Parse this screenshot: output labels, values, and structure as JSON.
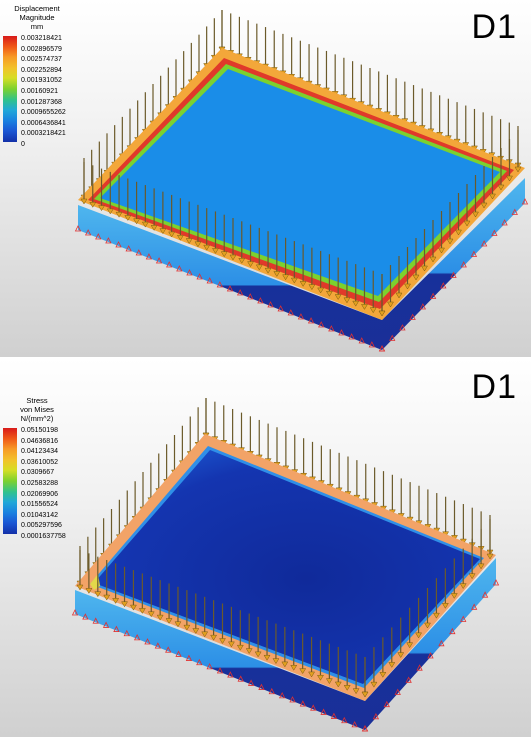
{
  "top": {
    "label": "D1",
    "legend": {
      "title_lines": [
        "Displacement",
        "Magnitude",
        "mm"
      ],
      "values": [
        "0.003218421",
        "0.002896579",
        "0.002574737",
        "0.002252894",
        "0.001931052",
        "0.00160921",
        "0.001287368",
        "0.0009655262",
        "0.0006436841",
        "0.0003218421",
        "0"
      ],
      "colors": [
        "#d81a1a",
        "#f05a18",
        "#f79a26",
        "#f2c22b",
        "#d6de25",
        "#7cd12e",
        "#2fc28c",
        "#21a8d8",
        "#1a7fe0",
        "#1b56d4",
        "#1330a8"
      ]
    }
  },
  "bottom": {
    "label": "D1",
    "legend": {
      "title_lines": [
        "Stress",
        "von Mises",
        "N/(mm^2)"
      ],
      "values": [
        "0.05150198",
        "0.04636816",
        "0.04123434",
        "0.03610052",
        "0.0309667",
        "0.02583288",
        "0.02069906",
        "0.01556524",
        "0.01043142",
        "0.005297596",
        "0.0001637758"
      ],
      "colors": [
        "#d81a1a",
        "#f05a18",
        "#f79a26",
        "#f2c22b",
        "#d6de25",
        "#7cd12e",
        "#2fc28c",
        "#21a8d8",
        "#1a7fe0",
        "#1b56d4",
        "#1330a8"
      ]
    }
  }
}
